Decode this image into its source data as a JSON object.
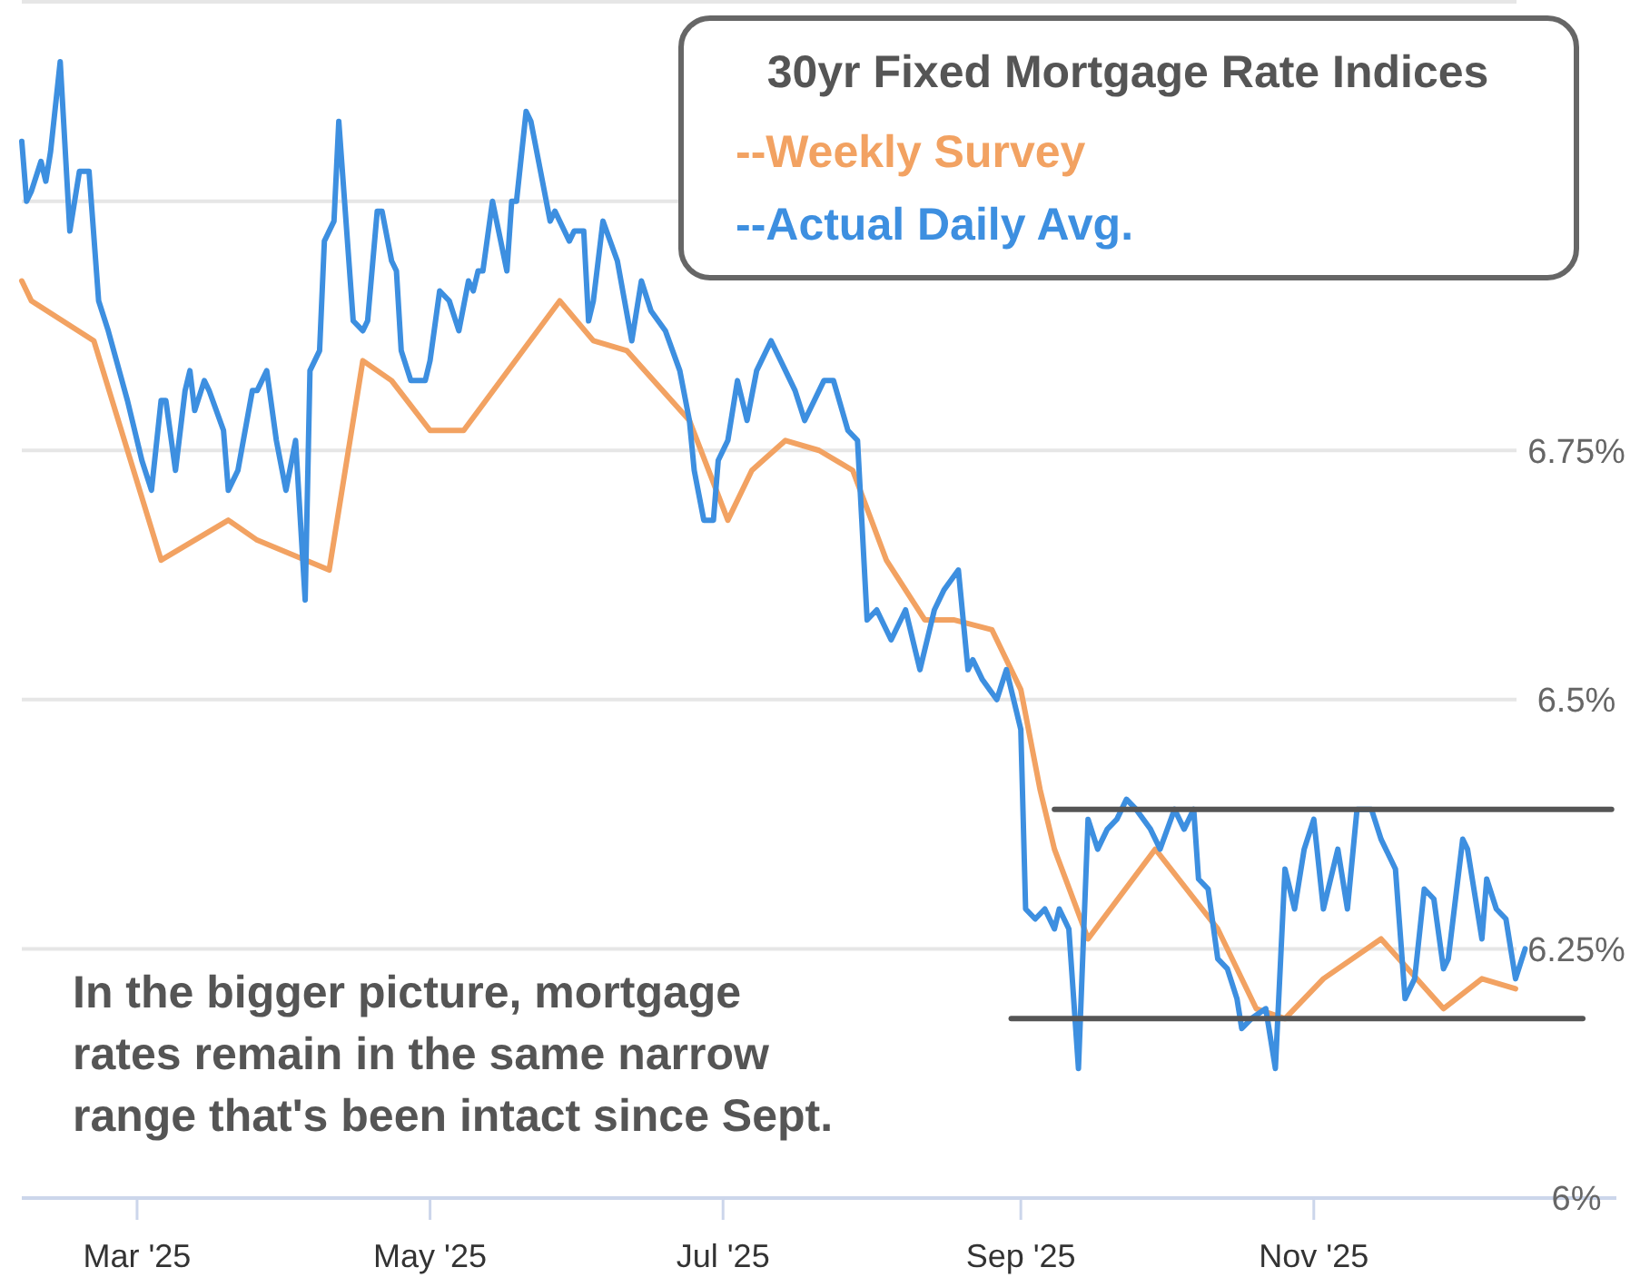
{
  "chart_data": {
    "type": "line",
    "legend_title": "30yr Fixed Mortgage Rate Indices",
    "legend": "top right",
    "grid": "y",
    "marker": "none",
    "line_style": "solid",
    "xlim": [
      "2025-02-05",
      "2026-01-03"
    ],
    "xticks": [
      {
        "value": "2025-03-01",
        "label": "Mar '25"
      },
      {
        "value": "2025-05-01",
        "label": "May '25"
      },
      {
        "value": "2025-07-01",
        "label": "Jul '25"
      },
      {
        "value": "2025-09-01",
        "label": "Sep '25"
      },
      {
        "value": "2025-11-01",
        "label": "Nov '25"
      }
    ],
    "ylim": [
      6,
      7.2
    ],
    "yticks": [
      {
        "value": 6,
        "label": "6%"
      },
      {
        "value": 6.25,
        "label": "6.25%"
      },
      {
        "value": 6.5,
        "label": "6.5%"
      },
      {
        "value": 6.75,
        "label": "6.75%"
      },
      {
        "value": 7,
        "label": null
      },
      {
        "value": 7.2,
        "label": null
      }
    ],
    "annotations": [
      "In the bigger picture, mortgage rates remain in the same narrow range that's been intact since Sept."
    ],
    "series": [
      {
        "name": "--Weekly Survey",
        "color": "#f2a262",
        "x": [
          "2025-02-05",
          "2025-02-07",
          "2025-02-20",
          "2025-03-06",
          "2025-03-20",
          "2025-03-26",
          "2025-04-10",
          "2025-04-17",
          "2025-04-23",
          "2025-05-01",
          "2025-05-08",
          "2025-05-28",
          "2025-06-04",
          "2025-06-11",
          "2025-06-24",
          "2025-07-02",
          "2025-07-07",
          "2025-07-14",
          "2025-07-21",
          "2025-07-28",
          "2025-08-04",
          "2025-08-12",
          "2025-08-18",
          "2025-08-26",
          "2025-09-01",
          "2025-09-05",
          "2025-09-08",
          "2025-09-15",
          "2025-09-29",
          "2025-10-12",
          "2025-10-20",
          "2025-10-26",
          "2025-11-03",
          "2025-11-15",
          "2025-11-28",
          "2025-12-06",
          "2025-12-13"
        ],
        "values": [
          6.92,
          6.9,
          6.86,
          6.64,
          6.68,
          6.66,
          6.63,
          6.84,
          6.82,
          6.77,
          6.77,
          6.9,
          6.86,
          6.85,
          6.78,
          6.68,
          6.73,
          6.76,
          6.75,
          6.73,
          6.64,
          6.58,
          6.58,
          6.57,
          6.51,
          6.41,
          6.35,
          6.26,
          6.35,
          6.27,
          6.19,
          6.18,
          6.22,
          6.26,
          6.19,
          6.22,
          6.21
        ]
      },
      {
        "name": "--Actual Daily Avg.",
        "color": "#3d8fe0",
        "x": [
          "2025-02-05",
          "2025-02-06",
          "2025-02-07",
          "2025-02-09",
          "2025-02-10",
          "2025-02-11",
          "2025-02-13",
          "2025-02-15",
          "2025-02-17",
          "2025-02-19",
          "2025-02-21",
          "2025-02-23",
          "2025-02-27",
          "2025-03-02",
          "2025-03-04",
          "2025-03-06",
          "2025-03-07",
          "2025-03-09",
          "2025-03-11",
          "2025-03-12",
          "2025-03-13",
          "2025-03-15",
          "2025-03-16",
          "2025-03-19",
          "2025-03-20",
          "2025-03-22",
          "2025-03-25",
          "2025-03-26",
          "2025-03-28",
          "2025-03-30",
          "2025-04-01",
          "2025-04-03",
          "2025-04-05",
          "2025-04-06",
          "2025-04-08",
          "2025-04-09",
          "2025-04-11",
          "2025-04-12",
          "2025-04-15",
          "2025-04-17",
          "2025-04-18",
          "2025-04-20",
          "2025-04-21",
          "2025-04-23",
          "2025-04-24",
          "2025-04-25",
          "2025-04-27",
          "2025-04-30",
          "2025-05-01",
          "2025-05-03",
          "2025-05-05",
          "2025-05-07",
          "2025-05-09",
          "2025-05-10",
          "2025-05-11",
          "2025-05-12",
          "2025-05-14",
          "2025-05-17",
          "2025-05-18",
          "2025-05-19",
          "2025-05-21",
          "2025-05-22",
          "2025-05-26",
          "2025-05-27",
          "2025-05-30",
          "2025-05-31",
          "2025-06-02",
          "2025-06-03",
          "2025-06-04",
          "2025-06-06",
          "2025-06-09",
          "2025-06-12",
          "2025-06-14",
          "2025-06-16",
          "2025-06-19",
          "2025-06-22",
          "2025-06-24",
          "2025-06-25",
          "2025-06-27",
          "2025-06-29",
          "2025-06-30",
          "2025-07-02",
          "2025-07-04",
          "2025-07-06",
          "2025-07-08",
          "2025-07-11",
          "2025-07-14",
          "2025-07-16",
          "2025-07-18",
          "2025-07-22",
          "2025-07-24",
          "2025-07-27",
          "2025-07-29",
          "2025-07-31",
          "2025-08-02",
          "2025-08-05",
          "2025-08-08",
          "2025-08-11",
          "2025-08-14",
          "2025-08-16",
          "2025-08-19",
          "2025-08-21",
          "2025-08-22",
          "2025-08-24",
          "2025-08-27",
          "2025-08-29",
          "2025-08-31",
          "2025-09-01",
          "2025-09-02",
          "2025-09-04",
          "2025-09-06",
          "2025-09-08",
          "2025-09-09",
          "2025-09-11",
          "2025-09-13",
          "2025-09-15",
          "2025-09-17",
          "2025-09-19",
          "2025-09-21",
          "2025-09-23",
          "2025-09-25",
          "2025-09-28",
          "2025-09-30",
          "2025-10-03",
          "2025-10-05",
          "2025-10-07",
          "2025-10-08",
          "2025-10-10",
          "2025-10-12",
          "2025-10-14",
          "2025-10-16",
          "2025-10-17",
          "2025-10-19",
          "2025-10-22",
          "2025-10-24",
          "2025-10-26",
          "2025-10-28",
          "2025-10-30",
          "2025-11-01",
          "2025-11-03",
          "2025-11-06",
          "2025-11-08",
          "2025-11-10",
          "2025-11-13",
          "2025-11-15",
          "2025-11-18",
          "2025-11-20",
          "2025-11-22",
          "2025-11-24",
          "2025-11-26",
          "2025-11-28",
          "2025-11-29",
          "2025-12-02",
          "2025-12-03",
          "2025-12-06",
          "2025-12-07",
          "2025-12-09",
          "2025-12-11",
          "2025-12-12",
          "2025-12-13",
          "2025-12-15"
        ],
        "values": [
          7.06,
          7.0,
          7.01,
          7.04,
          7.02,
          7.05,
          7.14,
          6.97,
          7.03,
          7.03,
          6.9,
          6.87,
          6.8,
          6.74,
          6.71,
          6.8,
          6.8,
          6.73,
          6.81,
          6.83,
          6.79,
          6.82,
          6.81,
          6.77,
          6.71,
          6.73,
          6.81,
          6.81,
          6.83,
          6.76,
          6.71,
          6.76,
          6.6,
          6.83,
          6.85,
          6.96,
          6.98,
          7.08,
          6.88,
          6.87,
          6.88,
          6.99,
          6.99,
          6.94,
          6.93,
          6.85,
          6.82,
          6.82,
          6.84,
          6.91,
          6.9,
          6.87,
          6.92,
          6.91,
          6.93,
          6.93,
          7.0,
          6.93,
          7.0,
          7.0,
          7.09,
          7.08,
          6.98,
          6.99,
          6.96,
          6.97,
          6.97,
          6.88,
          6.9,
          6.98,
          6.94,
          6.86,
          6.92,
          6.89,
          6.87,
          6.83,
          6.78,
          6.73,
          6.68,
          6.68,
          6.74,
          6.76,
          6.82,
          6.78,
          6.83,
          6.86,
          6.83,
          6.81,
          6.78,
          6.82,
          6.82,
          6.77,
          6.76,
          6.58,
          6.59,
          6.56,
          6.59,
          6.53,
          6.59,
          6.61,
          6.63,
          6.53,
          6.54,
          6.52,
          6.5,
          6.53,
          6.49,
          6.47,
          6.29,
          6.28,
          6.29,
          6.27,
          6.29,
          6.27,
          6.13,
          6.38,
          6.35,
          6.37,
          6.38,
          6.4,
          6.39,
          6.37,
          6.35,
          6.39,
          6.37,
          6.39,
          6.32,
          6.31,
          6.24,
          6.23,
          6.2,
          6.17,
          6.18,
          6.19,
          6.13,
          6.33,
          6.29,
          6.35,
          6.38,
          6.29,
          6.35,
          6.29,
          6.39,
          6.39,
          6.36,
          6.33,
          6.2,
          6.22,
          6.31,
          6.3,
          6.23,
          6.24,
          6.36,
          6.35,
          6.26,
          6.32,
          6.29,
          6.28,
          6.25,
          6.22,
          6.25
        ]
      },
      {
        "type": "line",
        "color": "#555555",
        "x": [
          "2025-09-08",
          "2026-01-02"
        ],
        "values": [
          6.39,
          6.39
        ]
      },
      {
        "type": "line",
        "color": "#555555",
        "x": [
          "2025-08-30",
          "2025-12-27"
        ],
        "values": [
          6.18,
          6.18
        ]
      }
    ]
  }
}
